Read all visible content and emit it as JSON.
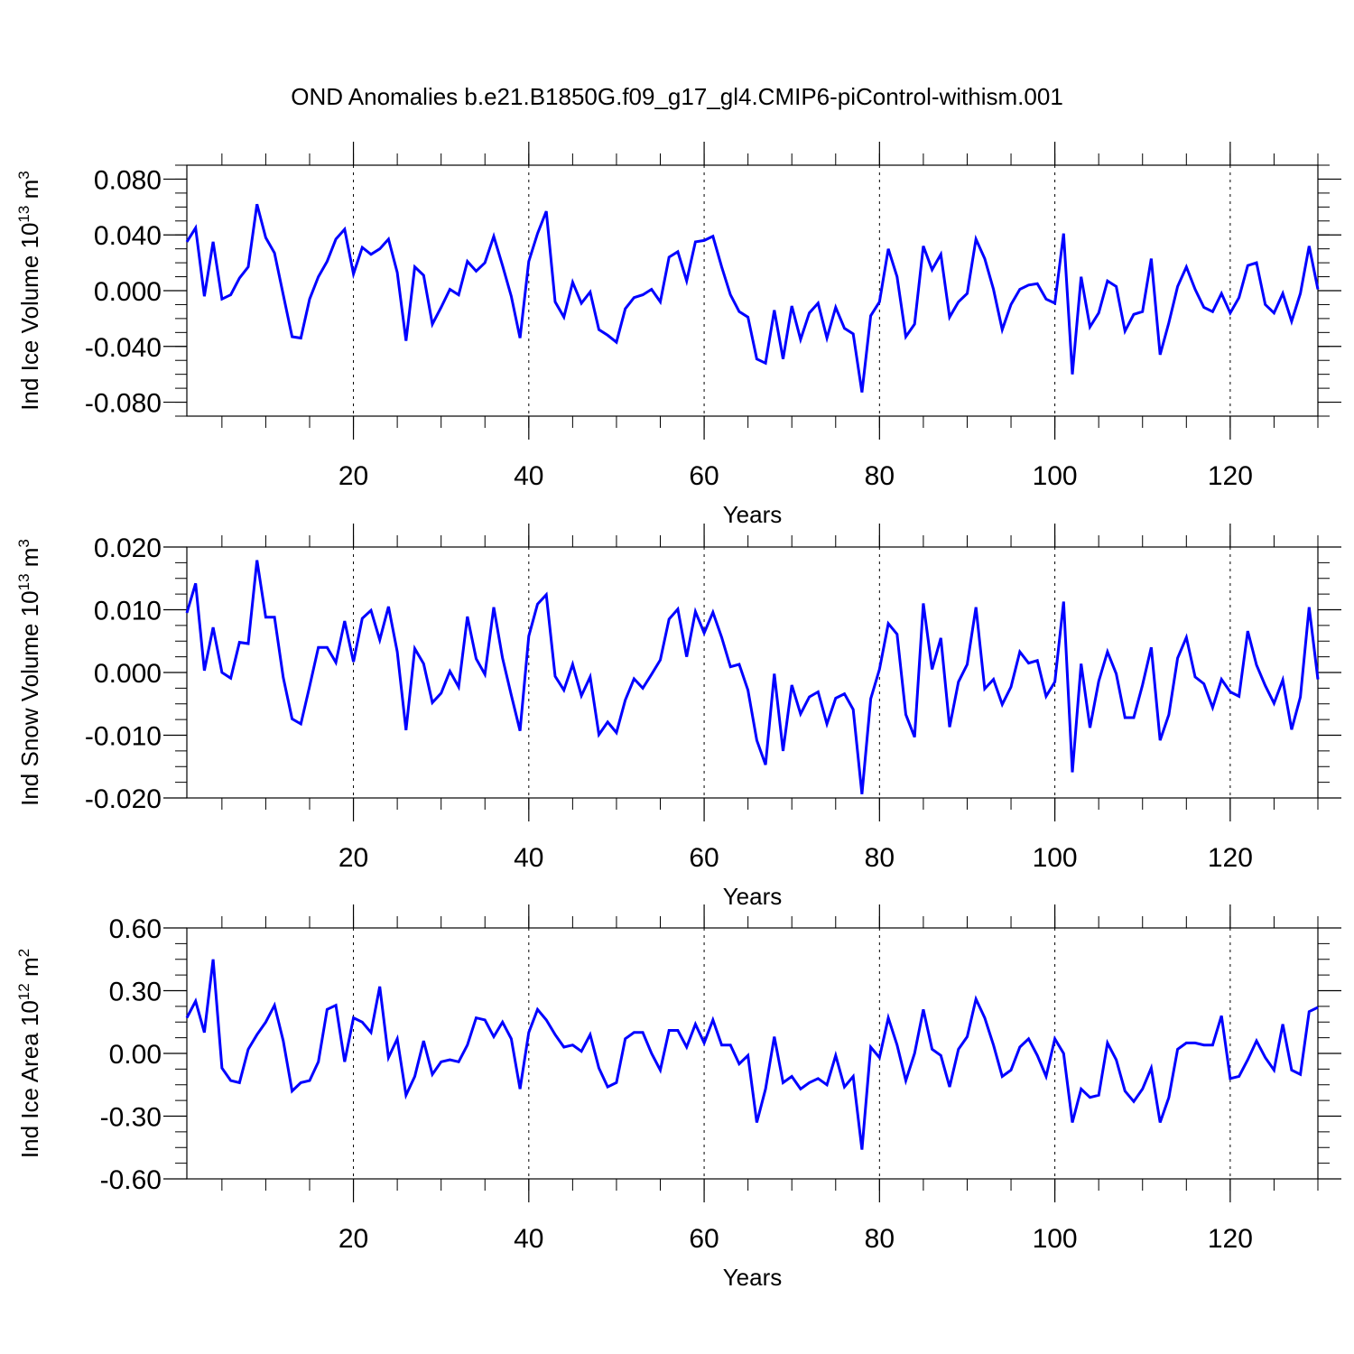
{
  "figure": {
    "title": "OND Anomalies b.e21.B1850G.f09_g17_gl4.CMIP6-piControl-withism.001"
  },
  "chart_data": [
    {
      "type": "line",
      "ylabel_main": "Ind Ice Volume 10",
      "ylabel_exp": "13",
      "ylabel_unit": " m",
      "ylabel_unit_exp": "3",
      "xlabel": "Years",
      "xlim": [
        1,
        130
      ],
      "ylim": [
        -0.09,
        0.09
      ],
      "xticks": [
        20,
        40,
        60,
        80,
        100,
        120
      ],
      "xtick_labels": [
        "20",
        "40",
        "60",
        "80",
        "100",
        "120"
      ],
      "yticks": [
        0.08,
        0.04,
        0.0,
        -0.04,
        -0.08
      ],
      "ytick_labels": [
        "0.080",
        "0.040",
        "0.000",
        "-0.040",
        "-0.080"
      ],
      "grid": "vertical dashed at major x ticks",
      "series": [
        {
          "color": "#0000ff",
          "x": [
            1,
            2,
            3,
            4,
            5,
            6,
            7,
            8,
            9,
            10,
            11,
            12,
            13,
            14,
            15,
            16,
            17,
            18,
            19,
            20,
            21,
            22,
            23,
            24,
            25,
            26,
            27,
            28,
            29,
            30,
            31,
            32,
            33,
            34,
            35,
            36,
            37,
            38,
            39,
            40,
            41,
            42,
            43,
            44,
            45,
            46,
            47,
            48,
            49,
            50,
            51,
            52,
            53,
            54,
            55,
            56,
            57,
            58,
            59,
            60,
            61,
            62,
            63,
            64,
            65,
            66,
            67,
            68,
            69,
            70,
            71,
            72,
            73,
            74,
            75,
            76,
            77,
            78,
            79,
            80,
            81,
            82,
            83,
            84,
            85,
            86,
            87,
            88,
            89,
            90,
            91,
            92,
            93,
            94,
            95,
            96,
            97,
            98,
            99,
            100,
            101,
            102,
            103,
            104,
            105,
            106,
            107,
            108,
            109,
            110,
            111,
            112,
            113,
            114,
            115,
            116,
            117,
            118,
            119,
            120,
            121,
            122,
            123,
            124,
            125,
            126,
            127,
            128,
            129,
            130
          ],
          "values": [
            0.035,
            0.045,
            -0.004,
            0.035,
            -0.006,
            -0.003,
            0.009,
            0.017,
            0.062,
            0.038,
            0.027,
            -0.003,
            -0.033,
            -0.034,
            -0.006,
            0.01,
            0.021,
            0.037,
            0.044,
            0.012,
            0.031,
            0.026,
            0.03,
            0.037,
            0.013,
            -0.036,
            0.017,
            0.011,
            -0.024,
            -0.012,
            0.001,
            -0.003,
            0.021,
            0.014,
            0.02,
            0.039,
            0.018,
            -0.004,
            -0.034,
            0.021,
            0.041,
            0.057,
            -0.008,
            -0.019,
            0.006,
            -0.009,
            -0.001,
            -0.028,
            -0.032,
            -0.037,
            -0.013,
            -0.005,
            -0.003,
            0.001,
            -0.008,
            0.024,
            0.028,
            0.007,
            0.035,
            0.036,
            0.039,
            0.017,
            -0.003,
            -0.015,
            -0.019,
            -0.049,
            -0.052,
            -0.014,
            -0.049,
            -0.011,
            -0.035,
            -0.016,
            -0.009,
            -0.034,
            -0.012,
            -0.027,
            -0.031,
            -0.073,
            -0.018,
            -0.008,
            0.03,
            0.01,
            -0.033,
            -0.024,
            0.032,
            0.015,
            0.026,
            -0.019,
            -0.008,
            -0.002,
            0.037,
            0.023,
            0.001,
            -0.028,
            -0.01,
            0.001,
            0.004,
            0.005,
            -0.006,
            -0.009,
            0.041,
            -0.06,
            0.01,
            -0.026,
            -0.016,
            0.007,
            0.003,
            -0.029,
            -0.017,
            -0.015,
            0.023,
            -0.046,
            -0.023,
            0.003,
            0.017,
            0.001,
            -0.012,
            -0.015,
            -0.002,
            -0.016,
            -0.005,
            0.018,
            0.02,
            -0.01,
            -0.016,
            -0.002,
            -0.022,
            -0.002,
            0.032,
            0.001
          ]
        }
      ]
    },
    {
      "type": "line",
      "ylabel_main": "Ind Snow Volume 10",
      "ylabel_exp": "13",
      "ylabel_unit": " m",
      "ylabel_unit_exp": "3",
      "xlabel": "Years",
      "xlim": [
        1,
        130
      ],
      "ylim": [
        -0.02,
        0.02
      ],
      "xticks": [
        20,
        40,
        60,
        80,
        100,
        120
      ],
      "xtick_labels": [
        "20",
        "40",
        "60",
        "80",
        "100",
        "120"
      ],
      "yticks": [
        0.02,
        0.01,
        0.0,
        -0.01,
        -0.02
      ],
      "ytick_labels": [
        "0.020",
        "0.010",
        "0.000",
        "-0.010",
        "-0.020"
      ],
      "grid": "vertical dashed at major x ticks",
      "series": [
        {
          "color": "#0000ff",
          "x": [
            1,
            2,
            3,
            4,
            5,
            6,
            7,
            8,
            9,
            10,
            11,
            12,
            13,
            14,
            15,
            16,
            17,
            18,
            19,
            20,
            21,
            22,
            23,
            24,
            25,
            26,
            27,
            28,
            29,
            30,
            31,
            32,
            33,
            34,
            35,
            36,
            37,
            38,
            39,
            40,
            41,
            42,
            43,
            44,
            45,
            46,
            47,
            48,
            49,
            50,
            51,
            52,
            53,
            54,
            55,
            56,
            57,
            58,
            59,
            60,
            61,
            62,
            63,
            64,
            65,
            66,
            67,
            68,
            69,
            70,
            71,
            72,
            73,
            74,
            75,
            76,
            77,
            78,
            79,
            80,
            81,
            82,
            83,
            84,
            85,
            86,
            87,
            88,
            89,
            90,
            91,
            92,
            93,
            94,
            95,
            96,
            97,
            98,
            99,
            100,
            101,
            102,
            103,
            104,
            105,
            106,
            107,
            108,
            109,
            110,
            111,
            112,
            113,
            114,
            115,
            116,
            117,
            118,
            119,
            120,
            121,
            122,
            123,
            124,
            125,
            126,
            127,
            128,
            129,
            130
          ],
          "values": [
            0.0095,
            0.0142,
            0.0003,
            0.0072,
            0.0,
            -0.0009,
            0.0048,
            0.0046,
            0.0179,
            0.0088,
            0.0088,
            -0.0008,
            -0.0074,
            -0.0082,
            -0.0022,
            0.004,
            0.004,
            0.0016,
            0.0082,
            0.0017,
            0.0086,
            0.0099,
            0.0052,
            0.0105,
            0.0033,
            -0.0092,
            0.0038,
            0.0014,
            -0.0048,
            -0.0033,
            0.0002,
            -0.0023,
            0.0089,
            0.0022,
            -0.0003,
            0.0104,
            0.0023,
            -0.0036,
            -0.0093,
            0.0058,
            0.0109,
            0.0124,
            -0.0006,
            -0.0028,
            0.0013,
            -0.0037,
            -0.0007,
            -0.0099,
            -0.0079,
            -0.0096,
            -0.0044,
            -0.001,
            -0.0025,
            -0.0003,
            0.002,
            0.0085,
            0.0101,
            0.0025,
            0.0097,
            0.0063,
            0.0096,
            0.0056,
            0.0009,
            0.0013,
            -0.0028,
            -0.0108,
            -0.0147,
            -0.0002,
            -0.0125,
            -0.002,
            -0.0066,
            -0.0039,
            -0.0031,
            -0.0082,
            -0.0041,
            -0.0034,
            -0.0059,
            -0.0194,
            -0.0042,
            0.0005,
            0.0078,
            0.0061,
            -0.0067,
            -0.0103,
            0.011,
            0.0005,
            0.0055,
            -0.0087,
            -0.0015,
            0.0013,
            0.0104,
            -0.0026,
            -0.0011,
            -0.0051,
            -0.0023,
            0.0033,
            0.0015,
            0.0019,
            -0.0038,
            -0.0015,
            0.0113,
            -0.0159,
            0.0014,
            -0.0088,
            -0.0014,
            0.0033,
            -0.0002,
            -0.0072,
            -0.0072,
            -0.002,
            0.004,
            -0.0108,
            -0.0067,
            0.0023,
            0.0056,
            -0.0007,
            -0.0018,
            -0.0056,
            -0.0011,
            -0.0031,
            -0.0038,
            0.0066,
            0.0012,
            -0.0021,
            -0.0049,
            -0.0012,
            -0.0091,
            -0.0039,
            0.0104,
            -0.0011
          ]
        }
      ]
    },
    {
      "type": "line",
      "ylabel_main": "Ind Ice Area 10",
      "ylabel_exp": "12",
      "ylabel_unit": " m",
      "ylabel_unit_exp": "2",
      "xlabel": "Years",
      "xlim": [
        1,
        130
      ],
      "ylim": [
        -0.6,
        0.6
      ],
      "xticks": [
        20,
        40,
        60,
        80,
        100,
        120
      ],
      "xtick_labels": [
        "20",
        "40",
        "60",
        "80",
        "100",
        "120"
      ],
      "yticks": [
        0.6,
        0.3,
        0.0,
        -0.3,
        -0.6
      ],
      "ytick_labels": [
        "0.60",
        "0.30",
        "0.00",
        "-0.30",
        "-0.60"
      ],
      "grid": "vertical dashed at major x ticks",
      "series": [
        {
          "color": "#0000ff",
          "x": [
            1,
            2,
            3,
            4,
            5,
            6,
            7,
            8,
            9,
            10,
            11,
            12,
            13,
            14,
            15,
            16,
            17,
            18,
            19,
            20,
            21,
            22,
            23,
            24,
            25,
            26,
            27,
            28,
            29,
            30,
            31,
            32,
            33,
            34,
            35,
            36,
            37,
            38,
            39,
            40,
            41,
            42,
            43,
            44,
            45,
            46,
            47,
            48,
            49,
            50,
            51,
            52,
            53,
            54,
            55,
            56,
            57,
            58,
            59,
            60,
            61,
            62,
            63,
            64,
            65,
            66,
            67,
            68,
            69,
            70,
            71,
            72,
            73,
            74,
            75,
            76,
            77,
            78,
            79,
            80,
            81,
            82,
            83,
            84,
            85,
            86,
            87,
            88,
            89,
            90,
            91,
            92,
            93,
            94,
            95,
            96,
            97,
            98,
            99,
            100,
            101,
            102,
            103,
            104,
            105,
            106,
            107,
            108,
            109,
            110,
            111,
            112,
            113,
            114,
            115,
            116,
            117,
            118,
            119,
            120,
            121,
            122,
            123,
            124,
            125,
            126,
            127,
            128,
            129,
            130
          ],
          "values": [
            0.17,
            0.25,
            0.1,
            0.45,
            -0.07,
            -0.13,
            -0.14,
            0.02,
            0.09,
            0.15,
            0.23,
            0.06,
            -0.18,
            -0.14,
            -0.13,
            -0.04,
            0.21,
            0.23,
            -0.04,
            0.17,
            0.15,
            0.1,
            0.32,
            -0.02,
            0.07,
            -0.2,
            -0.11,
            0.06,
            -0.1,
            -0.04,
            -0.03,
            -0.04,
            0.04,
            0.17,
            0.16,
            0.08,
            0.15,
            0.07,
            -0.17,
            0.1,
            0.21,
            0.16,
            0.09,
            0.03,
            0.04,
            0.01,
            0.09,
            -0.07,
            -0.16,
            -0.14,
            0.07,
            0.1,
            0.1,
            0.0,
            -0.08,
            0.11,
            0.11,
            0.03,
            0.14,
            0.05,
            0.16,
            0.04,
            0.04,
            -0.05,
            -0.01,
            -0.33,
            -0.17,
            0.08,
            -0.14,
            -0.11,
            -0.17,
            -0.14,
            -0.12,
            -0.15,
            -0.01,
            -0.16,
            -0.11,
            -0.46,
            0.03,
            -0.02,
            0.17,
            0.04,
            -0.13,
            0.0,
            0.21,
            0.02,
            -0.01,
            -0.16,
            0.02,
            0.08,
            0.26,
            0.17,
            0.04,
            -0.11,
            -0.08,
            0.03,
            0.07,
            -0.01,
            -0.11,
            0.07,
            0.0,
            -0.33,
            -0.17,
            -0.21,
            -0.2,
            0.05,
            -0.03,
            -0.18,
            -0.23,
            -0.17,
            -0.07,
            -0.33,
            -0.21,
            0.02,
            0.05,
            0.05,
            0.04,
            0.04,
            0.18,
            -0.12,
            -0.11,
            -0.03,
            0.06,
            -0.02,
            -0.08,
            0.14,
            -0.08,
            -0.1,
            0.2,
            0.22
          ]
        }
      ]
    }
  ]
}
